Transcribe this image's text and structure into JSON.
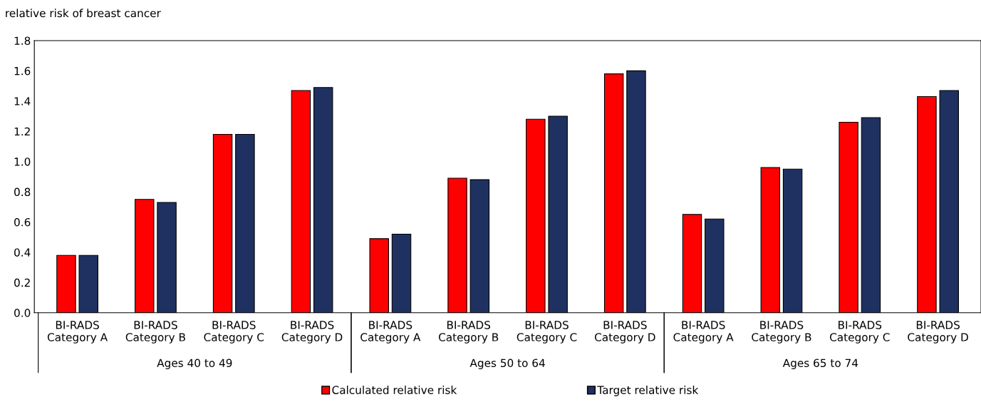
{
  "chart_data": {
    "type": "bar",
    "ylabel": "relative risk of breast cancer",
    "categories": [
      "BI-RADS\nCategory A",
      "BI-RADS\nCategory B",
      "BI-RADS\nCategory C",
      "BI-RADS\nCategory D",
      "BI-RADS\nCategory A",
      "BI-RADS\nCategory B",
      "BI-RADS\nCategory C",
      "BI-RADS\nCategory D",
      "BI-RADS\nCategory A",
      "BI-RADS\nCategory B",
      "BI-RADS\nCategory C",
      "BI-RADS\nCategory D"
    ],
    "series": [
      {
        "name": "Calculated relative risk",
        "color": "#ff0000",
        "values": [
          0.38,
          0.75,
          1.18,
          1.47,
          0.49,
          0.89,
          1.28,
          1.58,
          0.65,
          0.96,
          1.26,
          1.43
        ]
      },
      {
        "name": "Target relative risk",
        "color": "#1f3160",
        "values": [
          0.38,
          0.73,
          1.18,
          1.49,
          0.52,
          0.88,
          1.3,
          1.6,
          0.62,
          0.95,
          1.29,
          1.47
        ]
      }
    ],
    "annotations": [
      "Ages 40 to 49",
      "Ages 50 to 64",
      "Ages 65 to 74"
    ],
    "ylim": [
      0,
      1.8
    ],
    "yticks": [
      {
        "value": 0,
        "label": "0.0"
      },
      {
        "value": 0.2,
        "label": "0.2"
      },
      {
        "value": 0.4,
        "label": "0.4"
      },
      {
        "value": 0.6,
        "label": "0.6"
      },
      {
        "value": 0.8,
        "label": "0.8"
      },
      {
        "value": 1.0,
        "label": "1.0"
      },
      {
        "value": 1.2,
        "label": "1.2"
      },
      {
        "value": 1.4,
        "label": "1.4"
      },
      {
        "value": 1.6,
        "label": "1.6"
      },
      {
        "value": 1.8,
        "label": "1.8"
      }
    ],
    "grid": false,
    "legend": "bottom"
  }
}
